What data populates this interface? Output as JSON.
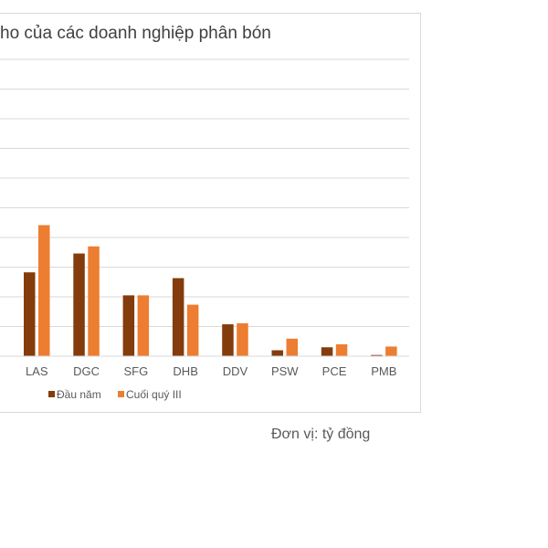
{
  "chart_data": {
    "type": "bar",
    "title": "ho của các doanh nghiệp phân bón",
    "unit_note": "Đơn vị: tỷ đồng",
    "categories": [
      "LAS",
      "DGC",
      "SFG",
      "DHB",
      "DDV",
      "PSW",
      "PCE",
      "PMB"
    ],
    "series": [
      {
        "name": "Đầu năm",
        "color": "#843c0c",
        "values": [
          565,
          692,
          410,
          526,
          215,
          40,
          60,
          8
        ]
      },
      {
        "name": "Cuối quý III",
        "color": "#ed7d31",
        "values": [
          883,
          740,
          410,
          347,
          222,
          118,
          80,
          65
        ]
      }
    ],
    "ylim": [
      0,
      2000
    ],
    "grid": true,
    "legend_position": "bottom"
  }
}
